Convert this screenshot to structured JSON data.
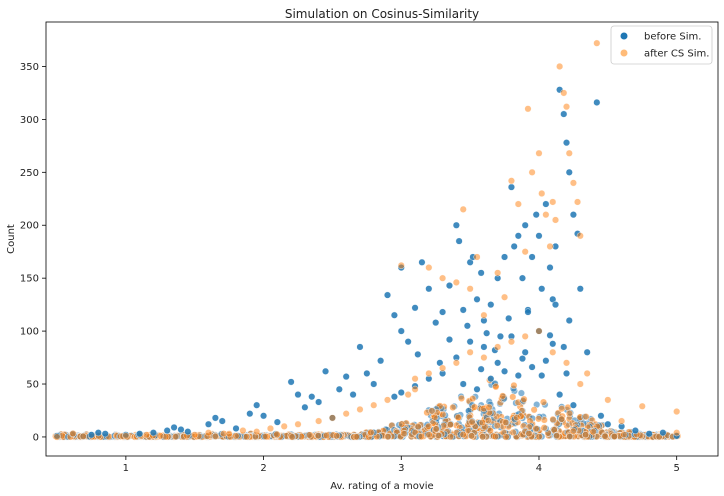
{
  "chart_data": {
    "type": "scatter",
    "title": "Simulation on Cosinus-Similarity",
    "xlabel": "Av. rating of a movie",
    "ylabel": "Count",
    "xlim": [
      0.42,
      5.3
    ],
    "ylim": [
      -18,
      392
    ],
    "xticks": [
      1,
      2,
      3,
      4,
      5
    ],
    "yticks": [
      0,
      50,
      100,
      150,
      200,
      250,
      300,
      350
    ],
    "grid": false,
    "legend_position": "top-right",
    "series": [
      {
        "name": "before Sim.",
        "color": "#1f77b4",
        "alpha": 0.85,
        "points": [
          [
            0.5,
            1
          ],
          [
            0.75,
            2
          ],
          [
            0.8,
            4
          ],
          [
            0.85,
            3
          ],
          [
            1.0,
            2
          ],
          [
            1.1,
            3
          ],
          [
            1.2,
            4
          ],
          [
            1.3,
            6
          ],
          [
            1.35,
            9
          ],
          [
            1.4,
            7
          ],
          [
            1.45,
            5
          ],
          [
            1.6,
            12
          ],
          [
            1.65,
            18
          ],
          [
            1.7,
            15
          ],
          [
            1.8,
            8
          ],
          [
            1.9,
            22
          ],
          [
            1.95,
            30
          ],
          [
            2.0,
            20
          ],
          [
            2.1,
            14
          ],
          [
            2.2,
            52
          ],
          [
            2.25,
            40
          ],
          [
            2.3,
            28
          ],
          [
            2.35,
            38
          ],
          [
            2.4,
            33
          ],
          [
            2.45,
            62
          ],
          [
            2.5,
            18
          ],
          [
            2.55,
            45
          ],
          [
            2.6,
            57
          ],
          [
            2.65,
            40
          ],
          [
            2.7,
            85
          ],
          [
            2.75,
            60
          ],
          [
            2.8,
            50
          ],
          [
            2.85,
            72
          ],
          [
            2.9,
            134
          ],
          [
            2.95,
            115
          ],
          [
            3.0,
            160
          ],
          [
            3.0,
            100
          ],
          [
            3.05,
            90
          ],
          [
            3.1,
            122
          ],
          [
            3.12,
            78
          ],
          [
            3.15,
            165
          ],
          [
            3.2,
            140
          ],
          [
            3.25,
            108
          ],
          [
            3.3,
            118
          ],
          [
            3.35,
            143
          ],
          [
            3.4,
            200
          ],
          [
            3.42,
            185
          ],
          [
            3.45,
            120
          ],
          [
            3.5,
            165
          ],
          [
            3.52,
            170
          ],
          [
            3.55,
            130
          ],
          [
            3.58,
            155
          ],
          [
            3.6,
            110
          ],
          [
            3.65,
            125
          ],
          [
            3.7,
            150
          ],
          [
            3.72,
            95
          ],
          [
            3.75,
            170
          ],
          [
            3.8,
            236
          ],
          [
            3.82,
            180
          ],
          [
            3.85,
            190
          ],
          [
            3.88,
            150
          ],
          [
            3.9,
            200
          ],
          [
            3.92,
            120
          ],
          [
            3.95,
            170
          ],
          [
            3.98,
            210
          ],
          [
            4.0,
            190
          ],
          [
            4.02,
            140
          ],
          [
            4.05,
            220
          ],
          [
            4.08,
            160
          ],
          [
            4.1,
            130
          ],
          [
            4.12,
            180
          ],
          [
            4.15,
            328
          ],
          [
            4.18,
            305
          ],
          [
            4.2,
            278
          ],
          [
            4.22,
            250
          ],
          [
            4.25,
            210
          ],
          [
            4.28,
            192
          ],
          [
            4.3,
            140
          ],
          [
            4.35,
            80
          ],
          [
            4.42,
            316
          ],
          [
            4.45,
            20
          ],
          [
            4.5,
            12
          ],
          [
            4.6,
            10
          ],
          [
            4.7,
            6
          ],
          [
            4.8,
            3
          ],
          [
            4.9,
            4
          ],
          [
            5.0,
            1
          ],
          [
            3.3,
            60
          ],
          [
            3.4,
            75
          ],
          [
            3.5,
            90
          ],
          [
            3.6,
            85
          ],
          [
            3.7,
            70
          ],
          [
            3.8,
            95
          ],
          [
            3.9,
            80
          ],
          [
            4.0,
            100
          ],
          [
            4.1,
            88
          ],
          [
            4.2,
            60
          ],
          [
            3.45,
            50
          ],
          [
            3.55,
            45
          ],
          [
            3.65,
            55
          ],
          [
            3.75,
            62
          ],
          [
            3.85,
            58
          ],
          [
            3.95,
            66
          ],
          [
            4.05,
            72
          ],
          [
            4.15,
            40
          ],
          [
            4.25,
            30
          ],
          [
            3.2,
            55
          ],
          [
            3.1,
            48
          ],
          [
            3.0,
            42
          ],
          [
            2.95,
            38
          ],
          [
            3.35,
            92
          ],
          [
            3.48,
            105
          ],
          [
            3.62,
            98
          ],
          [
            3.78,
            112
          ],
          [
            3.92,
            118
          ],
          [
            4.08,
            96
          ],
          [
            4.18,
            85
          ],
          [
            3.28,
            70
          ],
          [
            3.58,
            64
          ],
          [
            3.68,
            82
          ],
          [
            3.88,
            74
          ],
          [
            4.02,
            58
          ],
          [
            4.22,
            110
          ],
          [
            4.12,
            125
          ]
        ]
      },
      {
        "name": "after CS Sim.",
        "color": "#ff7f0e",
        "alpha": 0.5,
        "points": [
          [
            0.5,
            0
          ],
          [
            1.0,
            1
          ],
          [
            1.15,
            2
          ],
          [
            1.25,
            1
          ],
          [
            1.5,
            2
          ],
          [
            1.6,
            4
          ],
          [
            1.75,
            3
          ],
          [
            1.85,
            6
          ],
          [
            1.95,
            5
          ],
          [
            2.05,
            8
          ],
          [
            2.15,
            10
          ],
          [
            2.25,
            12
          ],
          [
            2.4,
            15
          ],
          [
            2.5,
            18
          ],
          [
            2.6,
            22
          ],
          [
            2.7,
            26
          ],
          [
            2.8,
            30
          ],
          [
            2.9,
            35
          ],
          [
            3.0,
            162
          ],
          [
            3.05,
            40
          ],
          [
            3.1,
            45
          ],
          [
            3.2,
            160
          ],
          [
            3.3,
            150
          ],
          [
            3.4,
            146
          ],
          [
            3.45,
            215
          ],
          [
            3.5,
            140
          ],
          [
            3.55,
            170
          ],
          [
            3.6,
            115
          ],
          [
            3.7,
            155
          ],
          [
            3.75,
            132
          ],
          [
            3.8,
            242
          ],
          [
            3.85,
            220
          ],
          [
            3.9,
            175
          ],
          [
            3.92,
            310
          ],
          [
            3.95,
            250
          ],
          [
            4.0,
            268
          ],
          [
            4.02,
            230
          ],
          [
            4.05,
            210
          ],
          [
            4.08,
            180
          ],
          [
            4.1,
            222
          ],
          [
            4.12,
            205
          ],
          [
            4.15,
            350
          ],
          [
            4.18,
            325
          ],
          [
            4.2,
            312
          ],
          [
            4.22,
            268
          ],
          [
            4.25,
            240
          ],
          [
            4.28,
            222
          ],
          [
            4.3,
            190
          ],
          [
            4.35,
            60
          ],
          [
            4.42,
            372
          ],
          [
            4.5,
            35
          ],
          [
            4.6,
            15
          ],
          [
            4.75,
            29
          ],
          [
            5.0,
            24
          ],
          [
            5.0,
            4
          ],
          [
            3.1,
            55
          ],
          [
            3.2,
            60
          ],
          [
            3.3,
            65
          ],
          [
            3.4,
            70
          ],
          [
            3.5,
            80
          ],
          [
            3.6,
            75
          ],
          [
            3.7,
            85
          ],
          [
            3.8,
            90
          ],
          [
            3.9,
            95
          ],
          [
            4.0,
            100
          ],
          [
            4.1,
            80
          ],
          [
            4.2,
            70
          ],
          [
            4.3,
            50
          ]
        ]
      }
    ],
    "dense_band": {
      "description_units": "rating vs count",
      "x_center": 3.7,
      "x_spread": 0.55,
      "y_max": 60
    }
  },
  "legend": {
    "items": [
      {
        "label": "before Sim.",
        "color": "#1f77b4"
      },
      {
        "label": "after CS Sim.",
        "color": "#ffbb78"
      }
    ]
  }
}
